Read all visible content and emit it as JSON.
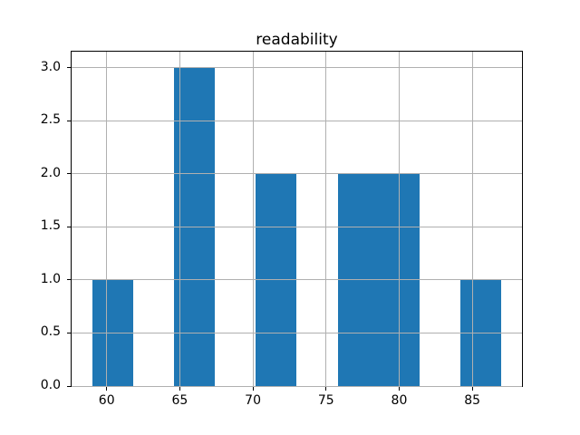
{
  "chart_data": {
    "type": "bar",
    "subtype": "histogram",
    "title": "readability",
    "xlabel": "",
    "ylabel": "",
    "bins": {
      "edges": [
        59.0,
        61.8,
        64.6,
        67.4,
        70.2,
        73.0,
        75.8,
        78.6,
        81.4,
        84.2,
        87.0
      ],
      "counts": [
        1,
        0,
        3,
        0,
        2,
        0,
        2,
        2,
        0,
        1
      ]
    },
    "xlim": [
      57.6,
      88.4
    ],
    "ylim": [
      0,
      3.15
    ],
    "xticks": [
      {
        "value": 60,
        "label": "60"
      },
      {
        "value": 65,
        "label": "65"
      },
      {
        "value": 70,
        "label": "70"
      },
      {
        "value": 75,
        "label": "75"
      },
      {
        "value": 80,
        "label": "80"
      },
      {
        "value": 85,
        "label": "85"
      }
    ],
    "yticks": [
      {
        "value": 0.0,
        "label": "0.0"
      },
      {
        "value": 0.5,
        "label": "0.5"
      },
      {
        "value": 1.0,
        "label": "1.0"
      },
      {
        "value": 1.5,
        "label": "1.5"
      },
      {
        "value": 2.0,
        "label": "2.0"
      },
      {
        "value": 2.5,
        "label": "2.5"
      },
      {
        "value": 3.0,
        "label": "3.0"
      }
    ],
    "grid": true,
    "grid_over_bars": true,
    "legend": "none",
    "colors": {
      "bar": "#1f77b4",
      "grid": "#b0b0b0",
      "spine": "#000000",
      "text": "#000000",
      "background": "#ffffff"
    }
  }
}
